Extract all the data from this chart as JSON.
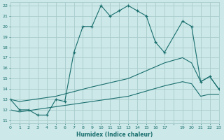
{
  "title": "",
  "xlabel": "Humidex (Indice chaleur)",
  "bg_color": "#cce8e8",
  "grid_color": "#aacccc",
  "line_color": "#1a6e6e",
  "xlim": [
    0,
    23
  ],
  "ylim": [
    11,
    22
  ],
  "yticks": [
    11,
    12,
    13,
    14,
    15,
    16,
    17,
    18,
    19,
    20,
    21,
    22
  ],
  "xtick_labels": [
    "0",
    "1",
    "2",
    "3",
    "4",
    "5",
    "6",
    "7",
    "8",
    "9",
    "10",
    "11",
    "12",
    "13",
    "14",
    "15",
    "16",
    "17",
    "",
    "19",
    "20",
    "21",
    "22",
    "23"
  ],
  "line1_x": [
    0,
    1,
    2,
    3,
    4,
    5,
    6,
    7,
    8,
    9,
    10,
    11,
    12,
    13,
    14,
    15,
    16,
    17,
    19,
    20,
    21,
    22,
    23
  ],
  "line1_y": [
    13,
    12,
    12,
    11.5,
    11.5,
    13,
    12.8,
    17.5,
    20,
    20,
    22,
    21,
    21.5,
    22,
    21.5,
    21,
    18.5,
    17.5,
    20.5,
    20,
    14.7,
    15.2,
    14
  ],
  "line2_x": [
    0,
    1,
    5,
    9,
    13,
    17,
    19,
    20,
    21,
    22,
    23
  ],
  "line2_y": [
    13,
    12.8,
    13.3,
    14.2,
    15.0,
    16.5,
    17.0,
    16.5,
    14.7,
    15.2,
    14.0
  ],
  "line3_x": [
    0,
    1,
    5,
    9,
    13,
    17,
    19,
    20,
    21,
    22,
    23
  ],
  "line3_y": [
    12.0,
    11.8,
    12.3,
    12.8,
    13.3,
    14.3,
    14.7,
    14.5,
    13.3,
    13.5,
    13.5
  ]
}
